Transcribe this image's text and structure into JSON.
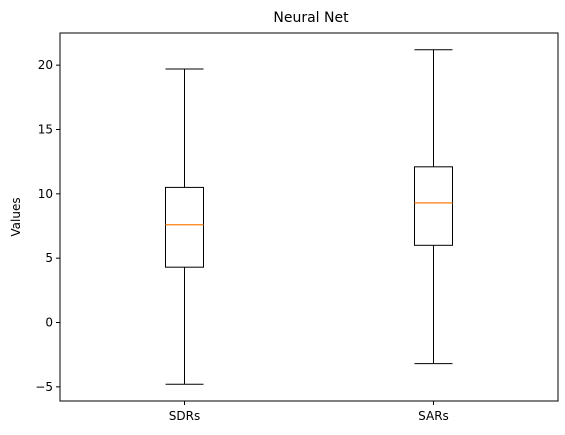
{
  "chart_data": {
    "type": "box",
    "title": "Neural Net",
    "xlabel": "",
    "ylabel": "Values",
    "categories": [
      "SDRs",
      "SARs"
    ],
    "boxes": [
      {
        "name": "SDRs",
        "whisker_low": -4.8,
        "q1": 4.3,
        "median": 7.6,
        "q3": 10.5,
        "whisker_high": 19.7
      },
      {
        "name": "SARs",
        "whisker_low": -3.2,
        "q1": 6.0,
        "median": 9.3,
        "q3": 12.1,
        "whisker_high": 21.2
      }
    ],
    "ylim": [
      -6.1,
      22.5
    ],
    "yticks": [
      -5,
      0,
      5,
      10,
      15,
      20
    ],
    "grid": false,
    "colors": {
      "box": "#000000",
      "median": "#ff7f0e"
    }
  }
}
